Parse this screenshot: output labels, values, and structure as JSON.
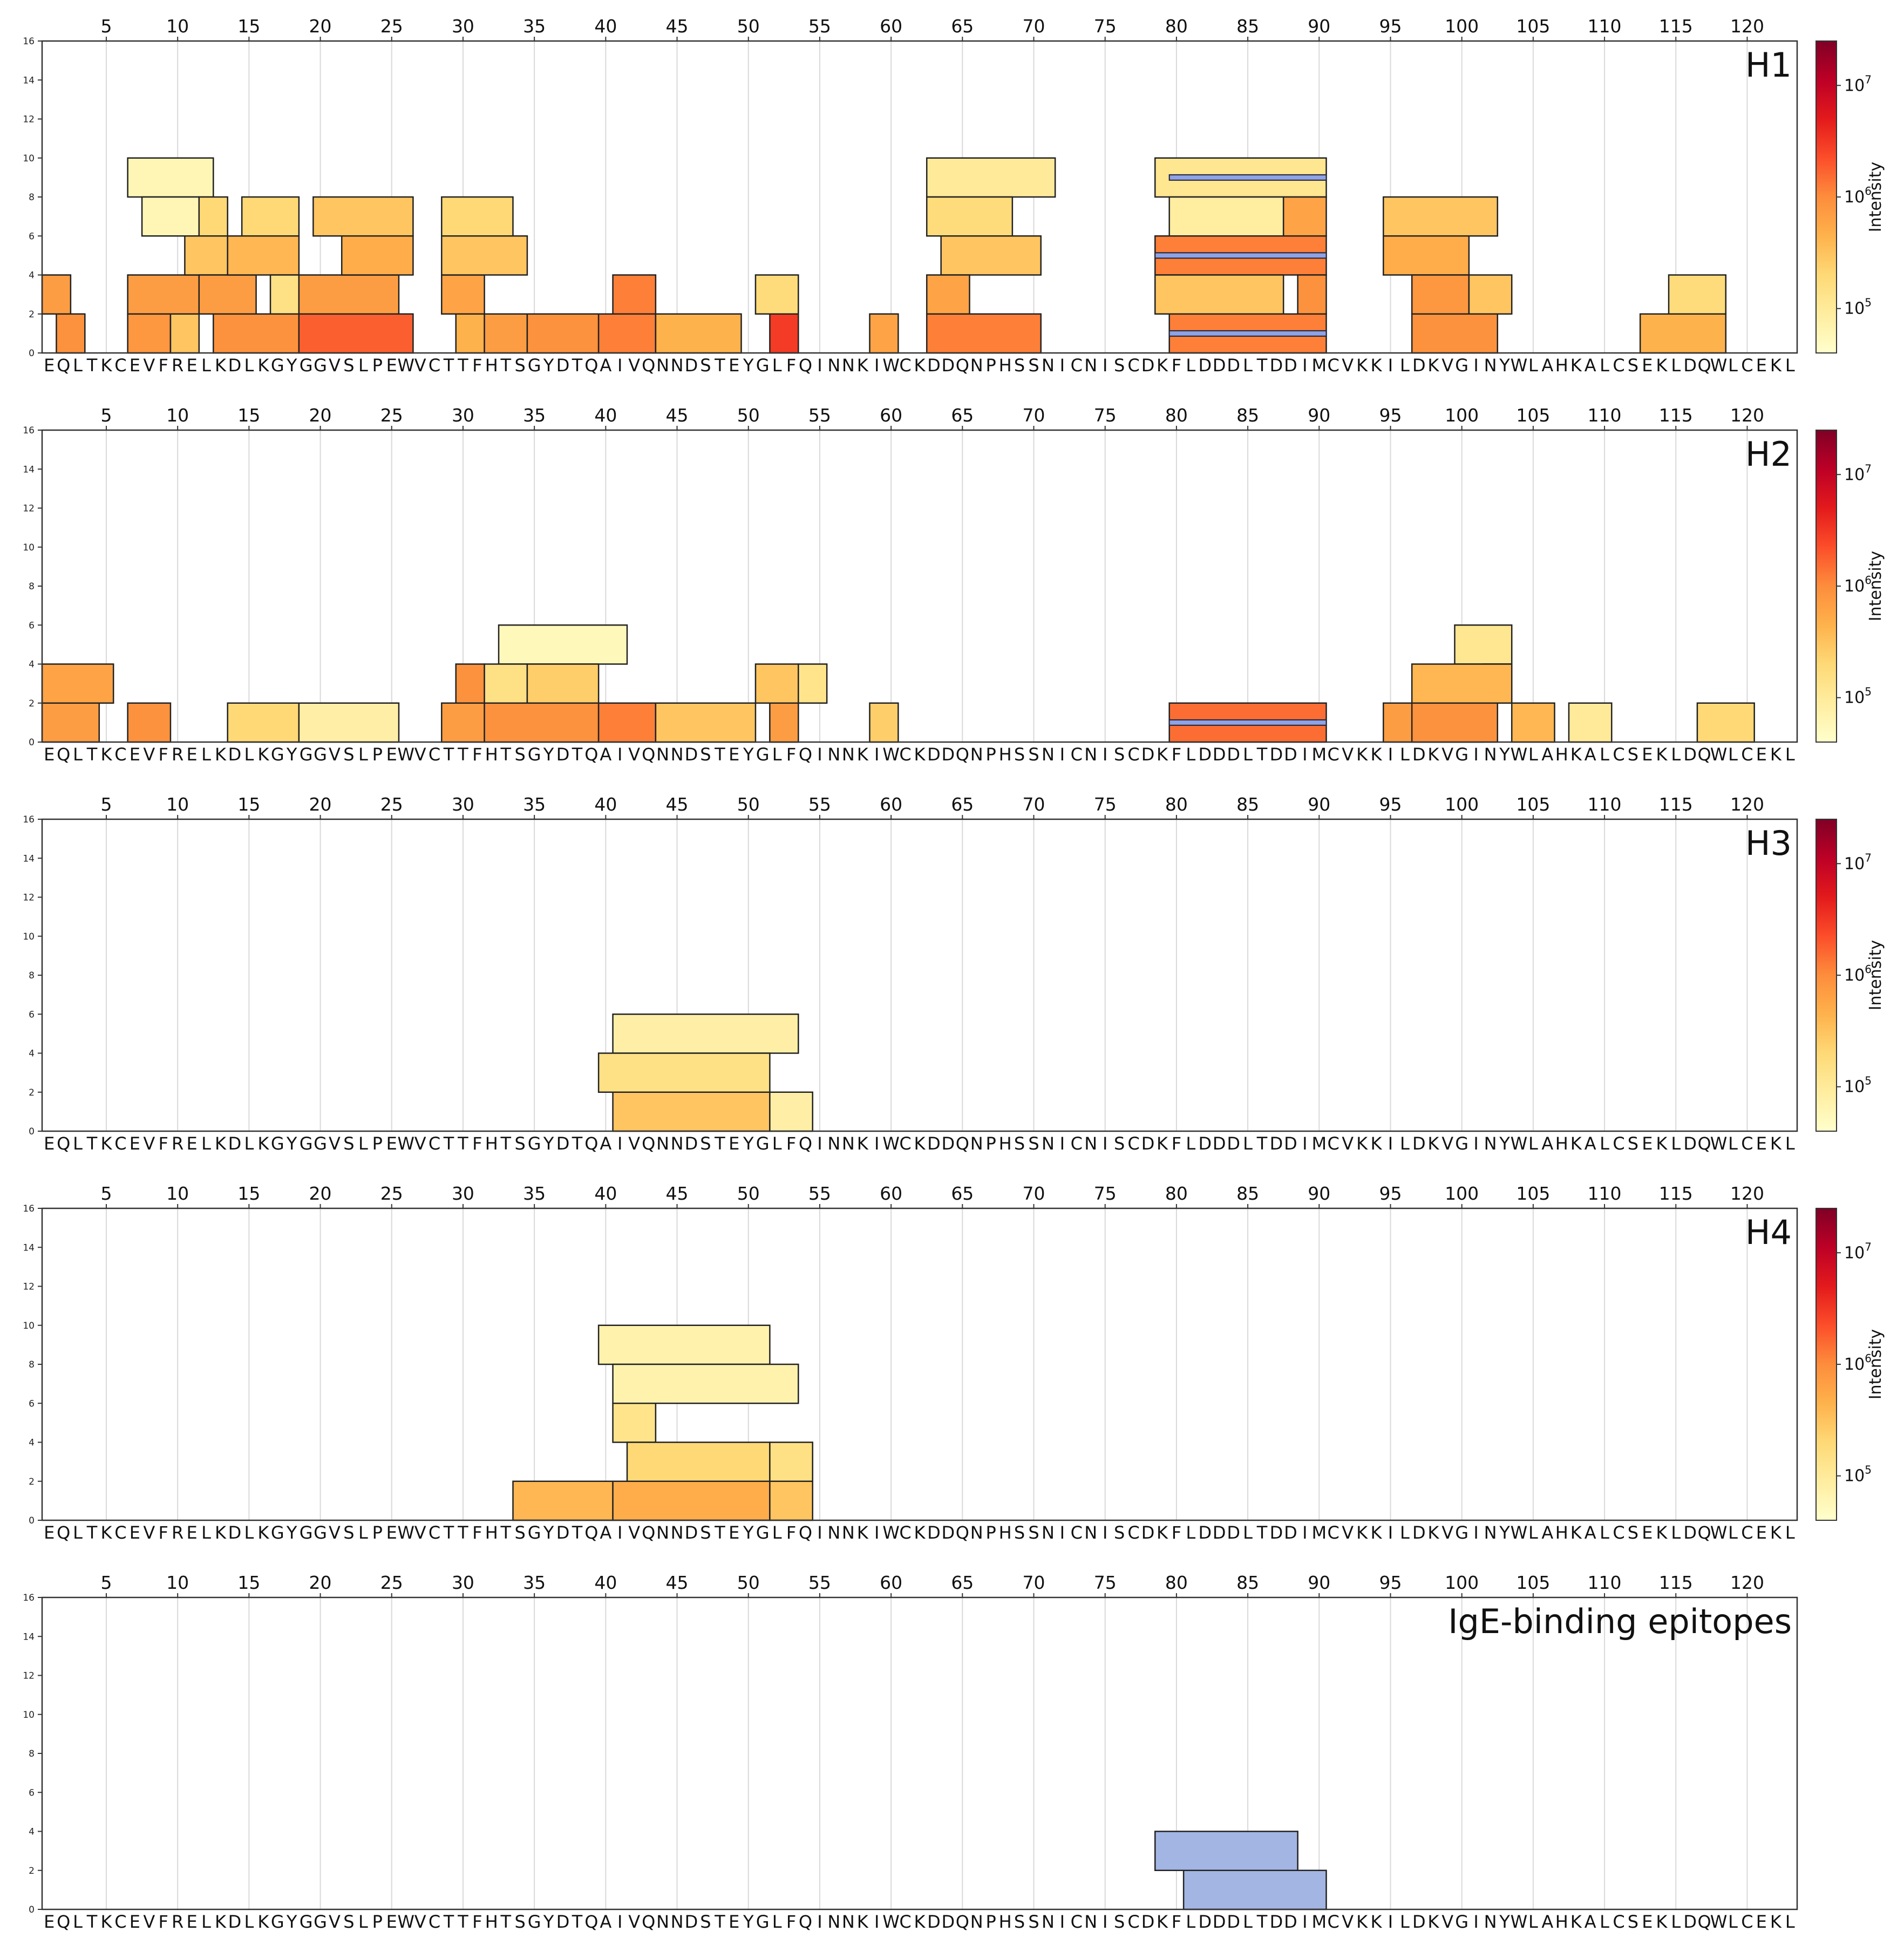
{
  "chart_data": {
    "type": "peptide-coverage-heatmap",
    "sequence": "EQLTKCEVFRELKDLKGYGGVSLPEWVCTTFHTSGYDTQAIVQNNDSTEYGLFQINNKIWCKDDQNPHSSNICNISCDKFLDDDLTDDIMCVKKILDKVGINYWLAHKALCSEKLDQWLCEKL",
    "x_ticks": [
      5,
      10,
      15,
      20,
      25,
      30,
      35,
      40,
      45,
      50,
      55,
      60,
      65,
      70,
      75,
      80,
      85,
      90,
      95,
      100,
      105,
      110,
      115,
      120
    ],
    "y_ticks": [
      0,
      2,
      4,
      6,
      8,
      10,
      12,
      14,
      16
    ],
    "ylim": [
      0,
      16
    ],
    "colorbar": {
      "label": "Intensity",
      "scale": "log",
      "range": [
        40000,
        25000000
      ],
      "ticks": [
        {
          "value": 100000,
          "base": "10",
          "exp": "5"
        },
        {
          "value": 1000000,
          "base": "10",
          "exp": "6"
        },
        {
          "value": 10000000,
          "base": "10",
          "exp": "7"
        }
      ],
      "colors": [
        "#ffffcc",
        "#ffeda0",
        "#fed976",
        "#feb24c",
        "#fd8d3c",
        "#fc4e2a",
        "#e31a1c",
        "#bd0026",
        "#800026"
      ]
    },
    "panels": [
      {
        "title": "H1",
        "has_colorbar": true,
        "peptides": [
          {
            "start": 1,
            "end": 2,
            "row": 1,
            "intensity": 700000
          },
          {
            "start": 2,
            "end": 3,
            "row": 0,
            "intensity": 900000
          },
          {
            "start": 7,
            "end": 9,
            "row": 0,
            "intensity": 800000
          },
          {
            "start": 7,
            "end": 11,
            "row": 1,
            "intensity": 700000
          },
          {
            "start": 7,
            "end": 12,
            "row": 4,
            "intensity": 60000
          },
          {
            "start": 8,
            "end": 11,
            "row": 3,
            "intensity": 60000
          },
          {
            "start": 10,
            "end": 11,
            "row": 0,
            "intensity": 300000
          },
          {
            "start": 11,
            "end": 13,
            "row": 2,
            "intensity": 300000
          },
          {
            "start": 12,
            "end": 13,
            "row": 3,
            "intensity": 200000
          },
          {
            "start": 12,
            "end": 15,
            "row": 1,
            "intensity": 700000
          },
          {
            "start": 13,
            "end": 18,
            "row": 0,
            "intensity": 900000
          },
          {
            "start": 14,
            "end": 18,
            "row": 2,
            "intensity": 400000
          },
          {
            "start": 15,
            "end": 18,
            "row": 3,
            "intensity": 200000
          },
          {
            "start": 17,
            "end": 18,
            "row": 1,
            "intensity": 150000
          },
          {
            "start": 19,
            "end": 25,
            "row": 1,
            "intensity": 700000
          },
          {
            "start": 19,
            "end": 26,
            "row": 0,
            "intensity": 1800000
          },
          {
            "start": 20,
            "end": 26,
            "row": 3,
            "intensity": 300000
          },
          {
            "start": 22,
            "end": 26,
            "row": 2,
            "intensity": 500000
          },
          {
            "start": 29,
            "end": 33,
            "row": 3,
            "intensity": 200000
          },
          {
            "start": 29,
            "end": 31,
            "row": 1,
            "intensity": 600000
          },
          {
            "start": 29,
            "end": 34,
            "row": 2,
            "intensity": 300000
          },
          {
            "start": 30,
            "end": 31,
            "row": 0,
            "intensity": 450000
          },
          {
            "start": 32,
            "end": 34,
            "row": 0,
            "intensity": 700000
          },
          {
            "start": 35,
            "end": 39,
            "row": 0,
            "intensity": 900000
          },
          {
            "start": 40,
            "end": 43,
            "row": 0,
            "intensity": 1200000
          },
          {
            "start": 41,
            "end": 43,
            "row": 1,
            "intensity": 1200000
          },
          {
            "start": 44,
            "end": 49,
            "row": 0,
            "intensity": 450000
          },
          {
            "start": 51,
            "end": 53,
            "row": 1,
            "intensity": 180000
          },
          {
            "start": 52,
            "end": 53,
            "row": 0,
            "intensity": 3000000
          },
          {
            "start": 59,
            "end": 60,
            "row": 0,
            "intensity": 600000
          },
          {
            "start": 63,
            "end": 71,
            "row": 4,
            "intensity": 100000
          },
          {
            "start": 63,
            "end": 68,
            "row": 3,
            "intensity": 180000
          },
          {
            "start": 64,
            "end": 70,
            "row": 2,
            "intensity": 300000
          },
          {
            "start": 63,
            "end": 65,
            "row": 1,
            "intensity": 600000
          },
          {
            "start": 63,
            "end": 70,
            "row": 0,
            "intensity": 1200000
          },
          {
            "start": 79,
            "end": 90,
            "row": 4,
            "intensity": 120000
          },
          {
            "start": 80,
            "end": 87,
            "row": 3,
            "intensity": 90000
          },
          {
            "start": 88,
            "end": 90,
            "row": 3,
            "intensity": 600000
          },
          {
            "start": 79,
            "end": 90,
            "row": 2,
            "intensity": 1200000
          },
          {
            "start": 79,
            "end": 87,
            "row": 1,
            "intensity": 300000
          },
          {
            "start": 89,
            "end": 90,
            "row": 1,
            "intensity": 900000
          },
          {
            "start": 80,
            "end": 90,
            "row": 0,
            "intensity": 1200000
          },
          {
            "start": 95,
            "end": 102,
            "row": 3,
            "intensity": 300000
          },
          {
            "start": 95,
            "end": 100,
            "row": 2,
            "intensity": 500000
          },
          {
            "start": 97,
            "end": 100,
            "row": 1,
            "intensity": 800000
          },
          {
            "start": 101,
            "end": 103,
            "row": 1,
            "intensity": 300000
          },
          {
            "start": 97,
            "end": 102,
            "row": 0,
            "intensity": 900000
          },
          {
            "start": 115,
            "end": 118,
            "row": 1,
            "intensity": 180000
          },
          {
            "start": 113,
            "end": 118,
            "row": 0,
            "intensity": 450000
          }
        ],
        "epitope_lines": [
          {
            "start": 80,
            "end": 90,
            "row": 4
          },
          {
            "start": 79,
            "end": 90,
            "row": 2
          },
          {
            "start": 80,
            "end": 90,
            "row": 0
          }
        ]
      },
      {
        "title": "H2",
        "has_colorbar": true,
        "peptides": [
          {
            "start": 1,
            "end": 5,
            "row": 1,
            "intensity": 600000
          },
          {
            "start": 1,
            "end": 4,
            "row": 0,
            "intensity": 700000
          },
          {
            "start": 7,
            "end": 9,
            "row": 0,
            "intensity": 900000
          },
          {
            "start": 14,
            "end": 18,
            "row": 0,
            "intensity": 200000
          },
          {
            "start": 19,
            "end": 25,
            "row": 0,
            "intensity": 80000
          },
          {
            "start": 33,
            "end": 41,
            "row": 2,
            "intensity": 55000
          },
          {
            "start": 30,
            "end": 31,
            "row": 1,
            "intensity": 900000
          },
          {
            "start": 32,
            "end": 34,
            "row": 1,
            "intensity": 150000
          },
          {
            "start": 35,
            "end": 39,
            "row": 1,
            "intensity": 250000
          },
          {
            "start": 29,
            "end": 31,
            "row": 0,
            "intensity": 700000
          },
          {
            "start": 32,
            "end": 39,
            "row": 0,
            "intensity": 900000
          },
          {
            "start": 40,
            "end": 43,
            "row": 0,
            "intensity": 1200000
          },
          {
            "start": 44,
            "end": 50,
            "row": 0,
            "intensity": 300000
          },
          {
            "start": 54,
            "end": 55,
            "row": 1,
            "intensity": 130000
          },
          {
            "start": 51,
            "end": 53,
            "row": 1,
            "intensity": 300000
          },
          {
            "start": 52,
            "end": 53,
            "row": 0,
            "intensity": 900000
          },
          {
            "start": 52,
            "end": 53,
            "row": 0,
            "intensity": 700000
          },
          {
            "start": 59,
            "end": 60,
            "row": 0,
            "intensity": 250000
          },
          {
            "start": 80,
            "end": 90,
            "row": 0,
            "intensity": 1500000
          },
          {
            "start": 100,
            "end": 103,
            "row": 2,
            "intensity": 120000
          },
          {
            "start": 102,
            "end": 103,
            "row": 1,
            "intensity": 150000
          },
          {
            "start": 97,
            "end": 103,
            "row": 1,
            "intensity": 400000
          },
          {
            "start": 95,
            "end": 101,
            "row": 0,
            "intensity": 700000
          },
          {
            "start": 97,
            "end": 102,
            "row": 0,
            "intensity": 900000
          },
          {
            "start": 104,
            "end": 106,
            "row": 0,
            "intensity": 400000
          },
          {
            "start": 108,
            "end": 110,
            "row": 0,
            "intensity": 100000
          },
          {
            "start": 117,
            "end": 120,
            "row": 0,
            "intensity": 200000
          }
        ],
        "epitope_lines": [
          {
            "start": 80,
            "end": 90,
            "row": 0
          }
        ]
      },
      {
        "title": "H3",
        "has_colorbar": true,
        "peptides": [
          {
            "start": 41,
            "end": 53,
            "row": 2,
            "intensity": 80000
          },
          {
            "start": 40,
            "end": 51,
            "row": 1,
            "intensity": 150000
          },
          {
            "start": 41,
            "end": 51,
            "row": 0,
            "intensity": 300000
          },
          {
            "start": 52,
            "end": 54,
            "row": 0,
            "intensity": 80000
          }
        ],
        "epitope_lines": []
      },
      {
        "title": "H4",
        "has_colorbar": true,
        "peptides": [
          {
            "start": 40,
            "end": 51,
            "row": 4,
            "intensity": 70000
          },
          {
            "start": 41,
            "end": 53,
            "row": 3,
            "intensity": 70000
          },
          {
            "start": 41,
            "end": 43,
            "row": 2,
            "intensity": 130000
          },
          {
            "start": 42,
            "end": 51,
            "row": 1,
            "intensity": 200000
          },
          {
            "start": 52,
            "end": 54,
            "row": 1,
            "intensity": 150000
          },
          {
            "start": 34,
            "end": 40,
            "row": 0,
            "intensity": 400000
          },
          {
            "start": 41,
            "end": 51,
            "row": 0,
            "intensity": 500000
          },
          {
            "start": 52,
            "end": 54,
            "row": 0,
            "intensity": 300000
          }
        ],
        "epitope_lines": []
      },
      {
        "title": "IgE-binding epitopes",
        "has_colorbar": false,
        "epitopes": [
          {
            "start": 79,
            "end": 88,
            "row": 1,
            "color": "#a3b5e3"
          },
          {
            "start": 81,
            "end": 90,
            "row": 0,
            "color": "#a3b5e3"
          }
        ]
      }
    ]
  }
}
